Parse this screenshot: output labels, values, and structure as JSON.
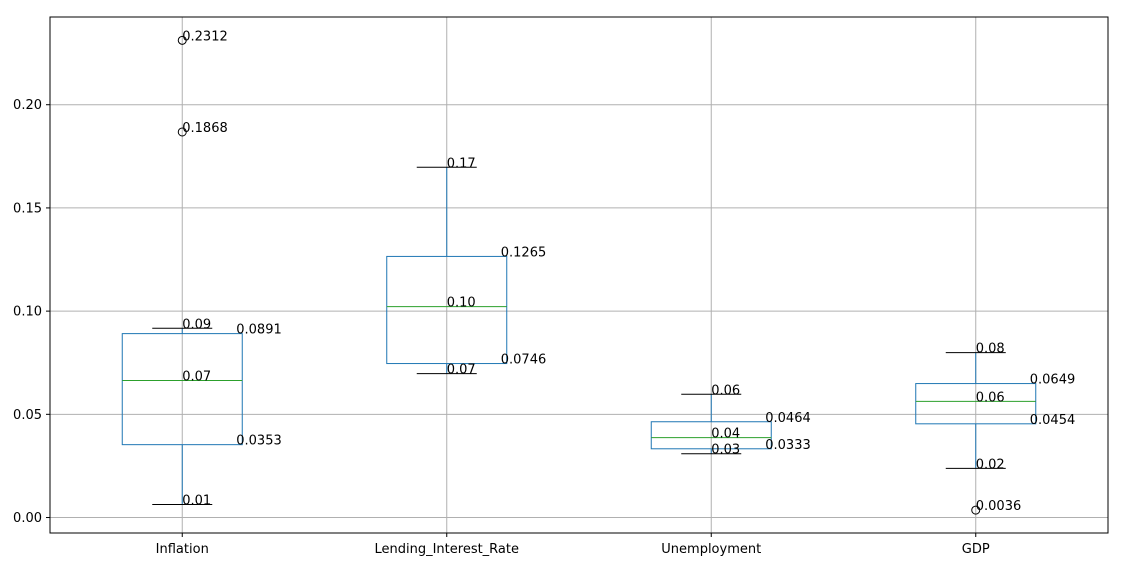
{
  "chart_data": {
    "type": "box",
    "title": "",
    "xlabel": "",
    "ylabel": "",
    "ylim": [
      -0.0075,
      0.2425
    ],
    "yticks": [
      0.0,
      0.05,
      0.1,
      0.15,
      0.2
    ],
    "ytick_labels": [
      "0.00",
      "0.05",
      "0.10",
      "0.15",
      "0.20"
    ],
    "grid": true,
    "categories": [
      "Inflation",
      "Lending_Interest_Rate",
      "Unemployment",
      "GDP"
    ],
    "boxes": [
      {
        "name": "Inflation",
        "whisker_low": 0.0063,
        "q1": 0.0353,
        "median": 0.0664,
        "q3": 0.0891,
        "whisker_high": 0.0917,
        "outliers": [
          0.1868,
          0.2312
        ],
        "annotations": [
          {
            "text": "0.2312",
            "value": 0.2312,
            "pos": "center"
          },
          {
            "text": "0.1868",
            "value": 0.1868,
            "pos": "center"
          },
          {
            "text": "0.09",
            "value": 0.0917,
            "pos": "center"
          },
          {
            "text": "0.0891",
            "value": 0.0891,
            "pos": "right"
          },
          {
            "text": "0.07",
            "value": 0.0664,
            "pos": "center"
          },
          {
            "text": "0.0353",
            "value": 0.0353,
            "pos": "right"
          },
          {
            "text": "0.01",
            "value": 0.0063,
            "pos": "center"
          }
        ]
      },
      {
        "name": "Lending_Interest_Rate",
        "whisker_low": 0.0697,
        "q1": 0.0746,
        "median": 0.1022,
        "q3": 0.1265,
        "whisker_high": 0.1697,
        "outliers": [],
        "annotations": [
          {
            "text": "0.17",
            "value": 0.1697,
            "pos": "center"
          },
          {
            "text": "0.1265",
            "value": 0.1265,
            "pos": "right"
          },
          {
            "text": "0.10",
            "value": 0.1022,
            "pos": "center"
          },
          {
            "text": "0.0746",
            "value": 0.0746,
            "pos": "right"
          },
          {
            "text": "0.07",
            "value": 0.0697,
            "pos": "center"
          }
        ]
      },
      {
        "name": "Unemployment",
        "whisker_low": 0.0309,
        "q1": 0.0333,
        "median": 0.0387,
        "q3": 0.0464,
        "whisker_high": 0.0597,
        "outliers": [],
        "annotations": [
          {
            "text": "0.06",
            "value": 0.0597,
            "pos": "center"
          },
          {
            "text": "0.0464",
            "value": 0.0464,
            "pos": "right"
          },
          {
            "text": "0.04",
            "value": 0.0387,
            "pos": "center"
          },
          {
            "text": "0.0333",
            "value": 0.0333,
            "pos": "right"
          },
          {
            "text": "0.03",
            "value": 0.0309,
            "pos": "center"
          }
        ]
      },
      {
        "name": "GDP",
        "whisker_low": 0.0238,
        "q1": 0.0454,
        "median": 0.0563,
        "q3": 0.0649,
        "whisker_high": 0.0799,
        "outliers": [
          0.0036
        ],
        "annotations": [
          {
            "text": "0.08",
            "value": 0.0799,
            "pos": "center"
          },
          {
            "text": "0.0649",
            "value": 0.0649,
            "pos": "right"
          },
          {
            "text": "0.06",
            "value": 0.0563,
            "pos": "center"
          },
          {
            "text": "0.0454",
            "value": 0.0454,
            "pos": "right"
          },
          {
            "text": "0.02",
            "value": 0.0238,
            "pos": "center"
          },
          {
            "text": "0.0036",
            "value": 0.0036,
            "pos": "center"
          }
        ]
      }
    ],
    "colors": {
      "box": "#1f77b4",
      "median": "#2ca02c",
      "cap": "#000000",
      "grid": "#b0b0b0",
      "spine": "#000000"
    }
  }
}
